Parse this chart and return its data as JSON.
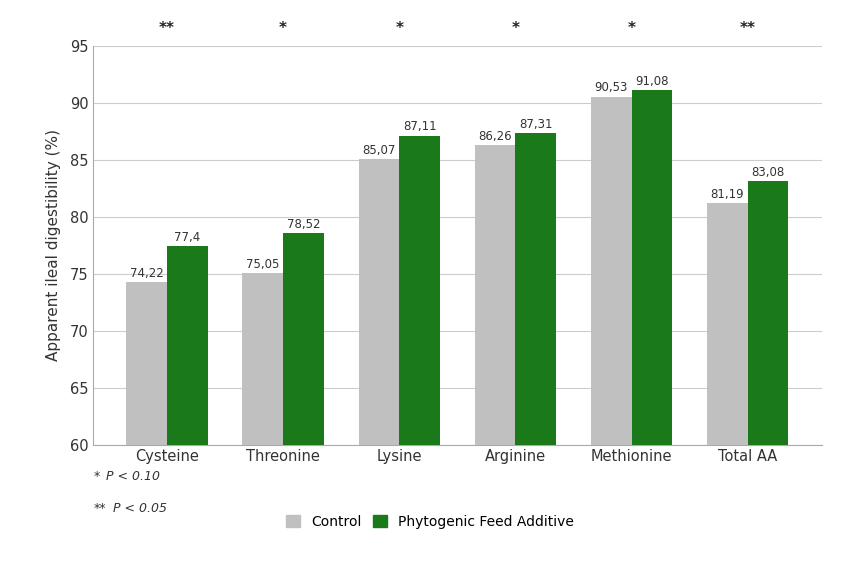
{
  "categories": [
    "Cysteine",
    "Threonine",
    "Lysine",
    "Arginine",
    "Methionine",
    "Total AA"
  ],
  "control_values": [
    74.22,
    75.05,
    85.07,
    86.26,
    90.53,
    81.19
  ],
  "phyto_values": [
    77.4,
    78.52,
    87.11,
    87.31,
    91.08,
    83.08
  ],
  "control_labels": [
    "74,22",
    "75,05",
    "85,07",
    "86,26",
    "90,53",
    "81,19"
  ],
  "phyto_labels": [
    "77,4",
    "78,52",
    "87,11",
    "87,31",
    "91,08",
    "83,08"
  ],
  "significance": [
    "**",
    "*",
    "*",
    "*",
    "*",
    "**"
  ],
  "control_color": "#C0C0C0",
  "phyto_color": "#1a7a1a",
  "ylabel": "Apparent ileal digestibility (%)",
  "ylim_min": 60,
  "ylim_max": 95,
  "yticks": [
    60,
    65,
    70,
    75,
    80,
    85,
    90,
    95
  ],
  "bar_width": 0.35,
  "legend_control": "Control",
  "legend_phyto": "Phytogenic Feed Additive",
  "footnote_line1": "* P < 0.10",
  "footnote_line2": "** P < 0.05",
  "background_color": "#ffffff",
  "grid_color": "#cccccc"
}
